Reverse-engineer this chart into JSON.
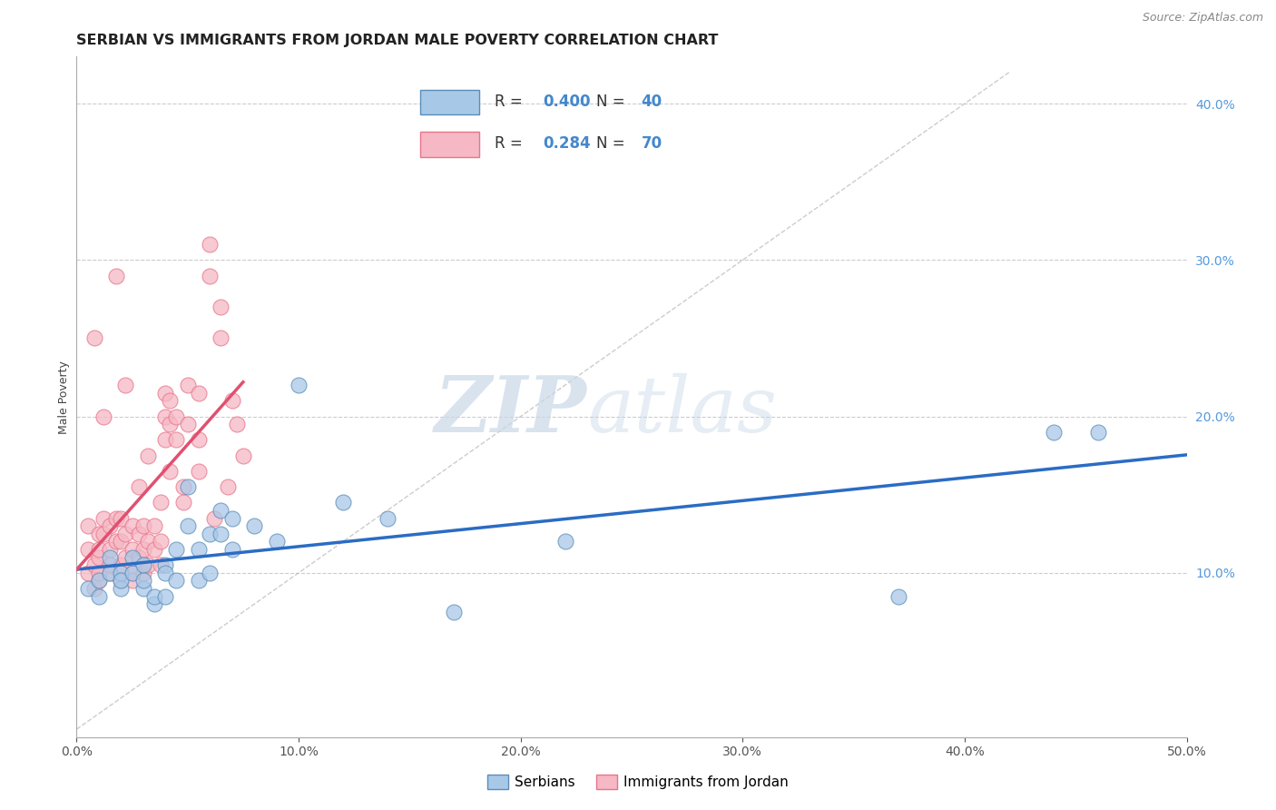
{
  "title": "SERBIAN VS IMMIGRANTS FROM JORDAN MALE POVERTY CORRELATION CHART",
  "source": "Source: ZipAtlas.com",
  "ylabel": "Male Poverty",
  "xlim": [
    0.0,
    0.5
  ],
  "ylim": [
    -0.005,
    0.43
  ],
  "xticks": [
    0.0,
    0.1,
    0.2,
    0.3,
    0.4,
    0.5
  ],
  "yticks": [
    0.1,
    0.2,
    0.3,
    0.4
  ],
  "blue_color": "#5B8DB8",
  "pink_color": "#E8748A",
  "blue_face": "#A8C8E8",
  "pink_face": "#F5B8C4",
  "watermark_zip": "ZIP",
  "watermark_atlas": "atlas",
  "blue_scatter_x": [
    0.005,
    0.01,
    0.01,
    0.015,
    0.015,
    0.02,
    0.02,
    0.02,
    0.025,
    0.025,
    0.03,
    0.03,
    0.03,
    0.035,
    0.035,
    0.04,
    0.04,
    0.04,
    0.045,
    0.045,
    0.05,
    0.05,
    0.055,
    0.055,
    0.06,
    0.06,
    0.065,
    0.065,
    0.07,
    0.07,
    0.08,
    0.09,
    0.1,
    0.12,
    0.14,
    0.17,
    0.22,
    0.37,
    0.44,
    0.46
  ],
  "blue_scatter_y": [
    0.09,
    0.095,
    0.085,
    0.1,
    0.11,
    0.09,
    0.1,
    0.095,
    0.1,
    0.11,
    0.09,
    0.105,
    0.095,
    0.08,
    0.085,
    0.105,
    0.1,
    0.085,
    0.095,
    0.115,
    0.155,
    0.13,
    0.095,
    0.115,
    0.125,
    0.1,
    0.125,
    0.14,
    0.135,
    0.115,
    0.13,
    0.12,
    0.22,
    0.145,
    0.135,
    0.075,
    0.12,
    0.085,
    0.19,
    0.19
  ],
  "pink_scatter_x": [
    0.005,
    0.005,
    0.005,
    0.008,
    0.008,
    0.01,
    0.01,
    0.01,
    0.01,
    0.01,
    0.012,
    0.012,
    0.015,
    0.015,
    0.015,
    0.015,
    0.018,
    0.018,
    0.02,
    0.02,
    0.02,
    0.02,
    0.022,
    0.022,
    0.025,
    0.025,
    0.025,
    0.025,
    0.028,
    0.028,
    0.03,
    0.03,
    0.03,
    0.032,
    0.032,
    0.035,
    0.035,
    0.038,
    0.038,
    0.04,
    0.04,
    0.04,
    0.042,
    0.042,
    0.045,
    0.045,
    0.048,
    0.05,
    0.05,
    0.055,
    0.055,
    0.06,
    0.06,
    0.065,
    0.065,
    0.07,
    0.072,
    0.075,
    0.008,
    0.012,
    0.018,
    0.022,
    0.028,
    0.032,
    0.038,
    0.042,
    0.048,
    0.055,
    0.062,
    0.068
  ],
  "pink_scatter_y": [
    0.1,
    0.115,
    0.13,
    0.09,
    0.105,
    0.095,
    0.11,
    0.125,
    0.1,
    0.115,
    0.125,
    0.135,
    0.1,
    0.115,
    0.13,
    0.105,
    0.12,
    0.135,
    0.105,
    0.12,
    0.135,
    0.095,
    0.11,
    0.125,
    0.1,
    0.115,
    0.13,
    0.095,
    0.11,
    0.125,
    0.1,
    0.115,
    0.13,
    0.105,
    0.12,
    0.115,
    0.13,
    0.105,
    0.12,
    0.2,
    0.215,
    0.185,
    0.195,
    0.21,
    0.185,
    0.2,
    0.155,
    0.22,
    0.195,
    0.215,
    0.185,
    0.31,
    0.29,
    0.27,
    0.25,
    0.21,
    0.195,
    0.175,
    0.25,
    0.2,
    0.29,
    0.22,
    0.155,
    0.175,
    0.145,
    0.165,
    0.145,
    0.165,
    0.135,
    0.155
  ],
  "background_color": "#FFFFFF",
  "title_fontsize": 11.5,
  "axis_label_fontsize": 9,
  "tick_fontsize": 10,
  "legend_fontsize": 12
}
